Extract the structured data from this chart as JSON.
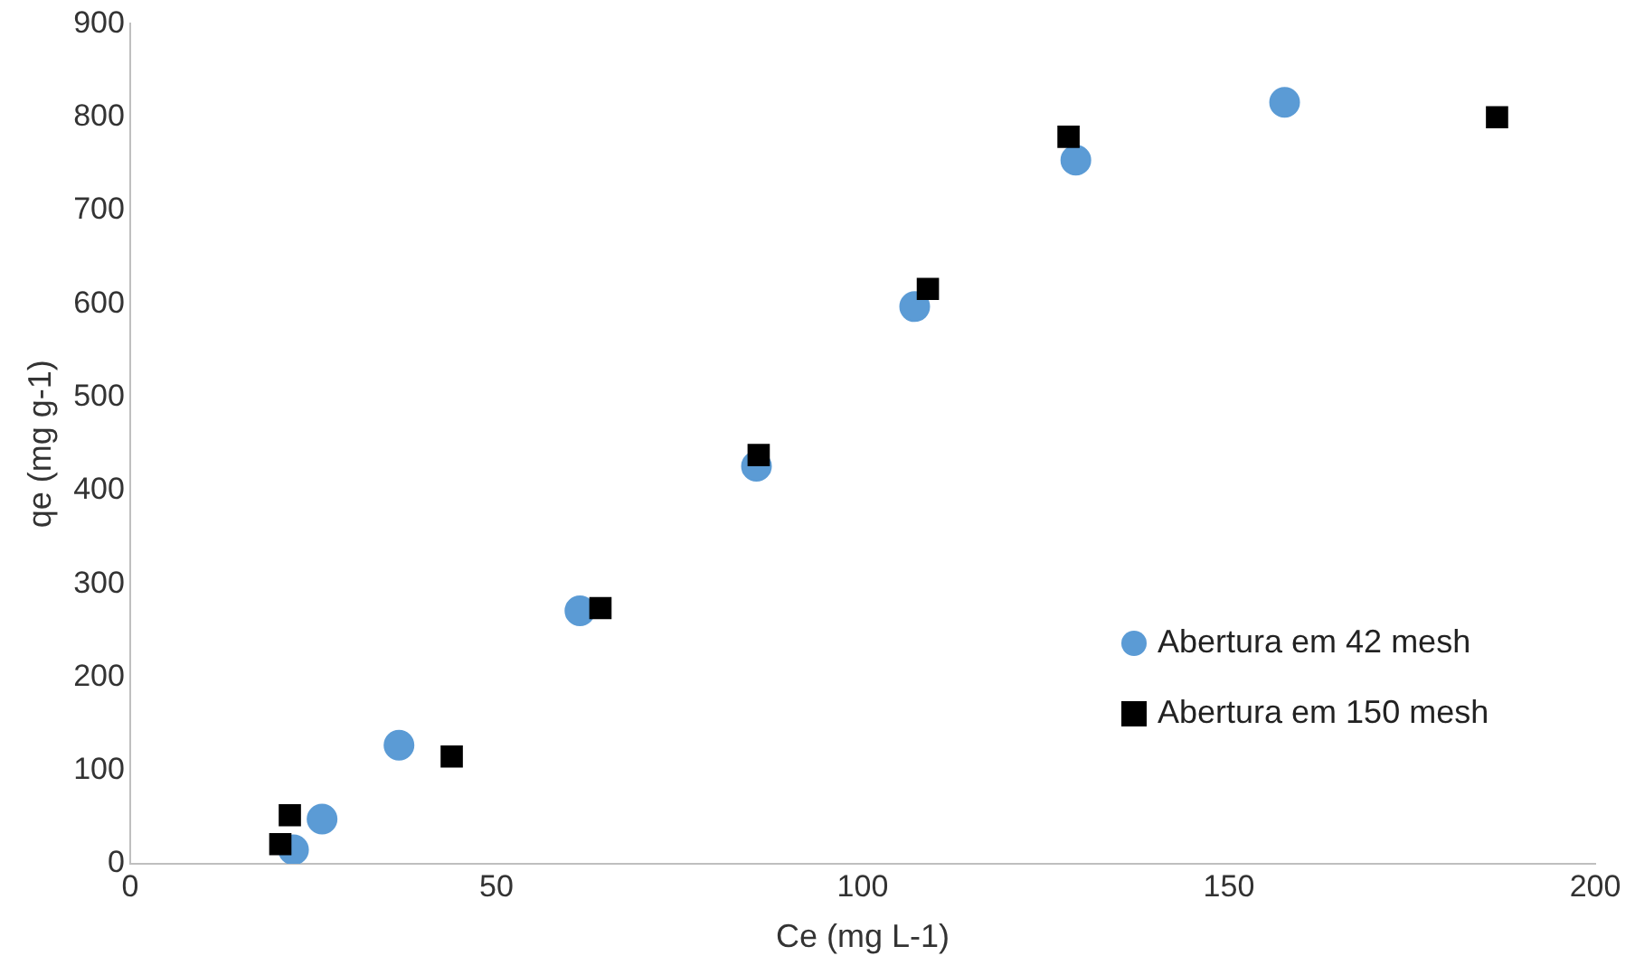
{
  "chart_data": {
    "type": "scatter",
    "xlabel": "Ce (mg L-1)",
    "ylabel": "qe (mg g-1)",
    "xlim": [
      0,
      200
    ],
    "xticks": [
      0,
      50,
      100,
      150,
      200
    ],
    "ylim": [
      0,
      900
    ],
    "yticks": [
      0,
      100,
      200,
      300,
      400,
      500,
      600,
      700,
      800,
      900
    ],
    "grid": false,
    "legend": "right",
    "series": [
      {
        "name": "Abertura em 42 mesh",
        "color": "#5b9bd5",
        "marker": "circle",
        "x": [
          22.3,
          26.2,
          36.7,
          61.4,
          85.5,
          107.1,
          129.1,
          157.6
        ],
        "values": [
          15,
          48,
          127,
          271,
          426,
          597,
          754,
          816
        ]
      },
      {
        "name": "Abertura em 150 mesh",
        "color": "#000000",
        "marker": "square",
        "x": [
          20.5,
          21.8,
          43.9,
          64.2,
          85.8,
          108.9,
          128.1,
          186.6
        ],
        "values": [
          21,
          52,
          115,
          274,
          438,
          616,
          779,
          800
        ]
      }
    ]
  }
}
